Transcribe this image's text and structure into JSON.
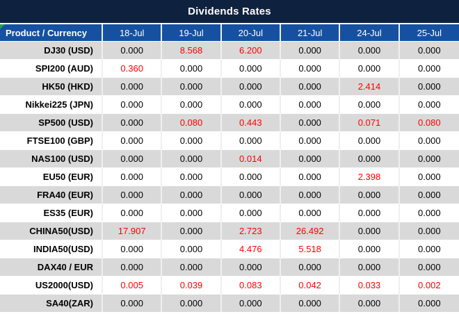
{
  "title": "Dividends Rates",
  "table": {
    "header": {
      "product_label": "Product / Currency",
      "dates": [
        "18-Jul",
        "19-Jul",
        "20-Jul",
        "21-Jul",
        "24-Jul",
        "25-Jul"
      ]
    },
    "rows": [
      {
        "product": "DJ30 (USD)",
        "values": [
          "0.000",
          "8.568",
          "6.200",
          "0.000",
          "0.000",
          "0.000"
        ],
        "red": [
          false,
          true,
          true,
          false,
          false,
          false
        ]
      },
      {
        "product": "SPI200 (AUD)",
        "values": [
          "0.360",
          "0.000",
          "0.000",
          "0.000",
          "0.000",
          "0.000"
        ],
        "red": [
          true,
          false,
          false,
          false,
          false,
          false
        ]
      },
      {
        "product": "HK50 (HKD)",
        "values": [
          "0.000",
          "0.000",
          "0.000",
          "0.000",
          "2.414",
          "0.000"
        ],
        "red": [
          false,
          false,
          false,
          false,
          true,
          false
        ]
      },
      {
        "product": "Nikkei225 (JPN)",
        "values": [
          "0.000",
          "0.000",
          "0.000",
          "0.000",
          "0.000",
          "0.000"
        ],
        "red": [
          false,
          false,
          false,
          false,
          false,
          false
        ]
      },
      {
        "product": "SP500 (USD)",
        "values": [
          "0.000",
          "0.080",
          "0.443",
          "0.000",
          "0.071",
          "0.080"
        ],
        "red": [
          false,
          true,
          true,
          false,
          true,
          true
        ]
      },
      {
        "product": "FTSE100 (GBP)",
        "values": [
          "0.000",
          "0.000",
          "0.000",
          "0.000",
          "0.000",
          "0.000"
        ],
        "red": [
          false,
          false,
          false,
          false,
          false,
          false
        ]
      },
      {
        "product": "NAS100 (USD)",
        "values": [
          "0.000",
          "0.000",
          "0.014",
          "0.000",
          "0.000",
          "0.000"
        ],
        "red": [
          false,
          false,
          true,
          false,
          false,
          false
        ]
      },
      {
        "product": "EU50 (EUR)",
        "values": [
          "0.000",
          "0.000",
          "0.000",
          "0.000",
          "2.398",
          "0.000"
        ],
        "red": [
          false,
          false,
          false,
          false,
          true,
          false
        ]
      },
      {
        "product": "FRA40 (EUR)",
        "values": [
          "0.000",
          "0.000",
          "0.000",
          "0.000",
          "0.000",
          "0.000"
        ],
        "red": [
          false,
          false,
          false,
          false,
          false,
          false
        ]
      },
      {
        "product": "ES35 (EUR)",
        "values": [
          "0.000",
          "0.000",
          "0.000",
          "0.000",
          "0.000",
          "0.000"
        ],
        "red": [
          false,
          false,
          false,
          false,
          false,
          false
        ]
      },
      {
        "product": "CHINA50(USD)",
        "values": [
          "17.907",
          "0.000",
          "2.723",
          "26.492",
          "0.000",
          "0.000"
        ],
        "red": [
          true,
          false,
          true,
          true,
          false,
          false
        ]
      },
      {
        "product": "INDIA50(USD)",
        "values": [
          "0.000",
          "0.000",
          "4.476",
          "5.518",
          "0.000",
          "0.000"
        ],
        "red": [
          false,
          false,
          true,
          true,
          false,
          false
        ]
      },
      {
        "product": "DAX40 / EUR",
        "values": [
          "0.000",
          "0.000",
          "0.000",
          "0.000",
          "0.000",
          "0.000"
        ],
        "red": [
          false,
          false,
          false,
          false,
          false,
          false
        ]
      },
      {
        "product": "US2000(USD)",
        "values": [
          "0.005",
          "0.039",
          "0.083",
          "0.042",
          "0.033",
          "0.002"
        ],
        "red": [
          true,
          true,
          true,
          true,
          true,
          true
        ]
      },
      {
        "product": "SA40(ZAR)",
        "values": [
          "0.000",
          "0.000",
          "0.000",
          "0.000",
          "0.000",
          "0.000"
        ],
        "red": [
          false,
          false,
          false,
          false,
          false,
          false
        ]
      }
    ]
  },
  "colors": {
    "title_bg": "#0E213E",
    "header_bg": "#1551A0",
    "row_alt_bg": "#D9D9D9",
    "negative_value": "#FF0000",
    "corner_marker": "#1FA34E"
  }
}
